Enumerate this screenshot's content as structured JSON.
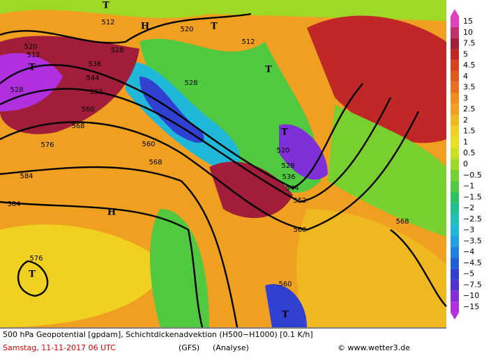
{
  "legend": [
    {
      "label": "15",
      "color": "#e040c0"
    },
    {
      "label": "10",
      "color": "#c0306a"
    },
    {
      "label": "7.5",
      "color": "#a01e3a"
    },
    {
      "label": "5",
      "color": "#c02828"
    },
    {
      "label": "4.5",
      "color": "#d84020"
    },
    {
      "label": "4",
      "color": "#e05a20"
    },
    {
      "label": "3.5",
      "color": "#e87020"
    },
    {
      "label": "3",
      "color": "#f08c20"
    },
    {
      "label": "2.5",
      "color": "#f0a020"
    },
    {
      "label": "2",
      "color": "#f0b820"
    },
    {
      "label": "1.5",
      "color": "#f0d020"
    },
    {
      "label": "1",
      "color": "#e8e020"
    },
    {
      "label": "0.5",
      "color": "#c8e020"
    },
    {
      "label": "0",
      "color": "#a0d828"
    },
    {
      "label": "−0.5",
      "color": "#78d030"
    },
    {
      "label": "−1",
      "color": "#50c840"
    },
    {
      "label": "−1.5",
      "color": "#30c060"
    },
    {
      "label": "−2",
      "color": "#20c090"
    },
    {
      "label": "−2.5",
      "color": "#20c0b8"
    },
    {
      "label": "−3",
      "color": "#20b8d8"
    },
    {
      "label": "−3.5",
      "color": "#20a0e0"
    },
    {
      "label": "−4",
      "color": "#2080e0"
    },
    {
      "label": "−4.5",
      "color": "#2060d8"
    },
    {
      "label": "−5",
      "color": "#3040d0"
    },
    {
      "label": "−7.5",
      "color": "#5030d0"
    },
    {
      "label": "−10",
      "color": "#8030d8"
    },
    {
      "label": "−15",
      "color": "#b030e0"
    }
  ],
  "contour_labels": [
    "512",
    "520",
    "512",
    "528",
    "536",
    "544",
    "552",
    "560",
    "568",
    "576",
    "584",
    "584",
    "528",
    "520",
    "512",
    "528",
    "560",
    "568",
    "520",
    "528",
    "536",
    "544",
    "552",
    "560",
    "568",
    "576",
    "560"
  ],
  "markers": [
    "T",
    "H",
    "T",
    "T",
    "T",
    "T",
    "H",
    "T",
    "T"
  ],
  "footer": {
    "title": "500 hPa Geopotential [gpdam], Schichtdickenadvektion (H500−H1000) [0.1 K/h]",
    "date": "Samstag, 11-11-2017  06 UTC",
    "model": "(GFS)",
    "run": "(Analyse)",
    "source": "© www.wetter3.de"
  }
}
